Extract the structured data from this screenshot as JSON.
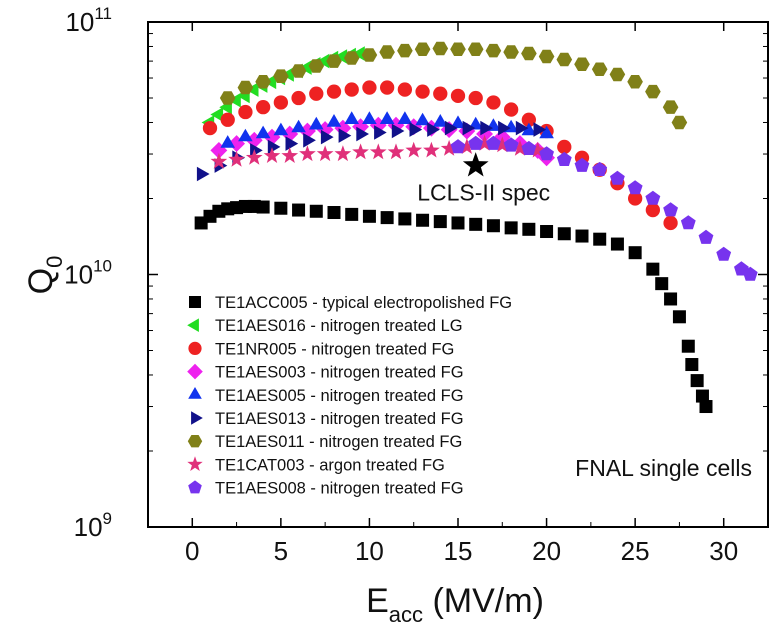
{
  "chart_data": {
    "type": "scatter",
    "xlabel": "E",
    "xlabel_sub": "acc",
    "xlabel_unit": " (MV/m)",
    "ylabel": "Q",
    "ylabel_sub": "0",
    "xlim": [
      -2.5,
      32.5
    ],
    "ylim": [
      1000000000.0,
      100000000000.0
    ],
    "yscale": "log",
    "x_ticks": [
      0,
      5,
      10,
      15,
      20,
      25,
      30
    ],
    "y_ticks": [
      {
        "value": 1000000000.0,
        "base": "10",
        "exp": "9"
      },
      {
        "value": 10000000000.0,
        "base": "10",
        "exp": "10"
      },
      {
        "value": 100000000000.0,
        "base": "10",
        "exp": "11"
      }
    ],
    "legend_position": "bottom-left",
    "annotations": [
      {
        "text": "LCLS-II spec",
        "x": 16,
        "y": 27000000000.0,
        "marker": "star",
        "color": "#000000"
      },
      {
        "text": "FNAL single cells",
        "position": "bottom-right"
      }
    ],
    "series": [
      {
        "name": "TE1ACC005 - typical electropolished FG",
        "marker": "square",
        "color": "#000000",
        "x": [
          0.5,
          1,
          1.5,
          2,
          2.5,
          3,
          3.5,
          4,
          5,
          6,
          7,
          8,
          9,
          10,
          11,
          12,
          13,
          14,
          15,
          16,
          17,
          18,
          19,
          20,
          21,
          22,
          23,
          24,
          25,
          26,
          26.5,
          27,
          27.5,
          28,
          28.2,
          28.5,
          28.8,
          29
        ],
        "y": [
          16000000000.0,
          17000000000.0,
          17800000000.0,
          18200000000.0,
          18400000000.0,
          18600000000.0,
          18600000000.0,
          18500000000.0,
          18300000000.0,
          18000000000.0,
          17800000000.0,
          17600000000.0,
          17300000000.0,
          17000000000.0,
          16800000000.0,
          16600000000.0,
          16400000000.0,
          16200000000.0,
          16000000000.0,
          15800000000.0,
          15600000000.0,
          15300000000.0,
          15100000000.0,
          14800000000.0,
          14500000000.0,
          14200000000.0,
          13800000000.0,
          13200000000.0,
          12200000000.0,
          10500000000.0,
          9200000000.0,
          8000000000.0,
          6800000000.0,
          5200000000.0,
          4400000000.0,
          3800000000.0,
          3300000000.0,
          3000000000.0
        ]
      },
      {
        "name": "TE1AES016 - nitrogen treated LG",
        "marker": "triangle-left",
        "color": "#22dd22",
        "x": [
          1,
          1.5,
          2,
          2.5,
          3,
          3.5,
          4,
          4.5,
          5,
          5.5,
          6,
          6.5,
          7,
          7.5,
          8,
          8.5,
          9,
          9.5
        ],
        "y": [
          40000000000.0,
          43000000000.0,
          46000000000.0,
          49000000000.0,
          51000000000.0,
          54000000000.0,
          56000000000.0,
          58000000000.0,
          60000000000.0,
          62000000000.0,
          64000000000.0,
          66000000000.0,
          68000000000.0,
          70000000000.0,
          72000000000.0,
          73000000000.0,
          74000000000.0,
          75000000000.0
        ]
      },
      {
        "name": "TE1NR005 - nitrogen treated FG",
        "marker": "circle",
        "color": "#ee2222",
        "x": [
          1,
          2,
          3,
          4,
          5,
          6,
          7,
          8,
          9,
          10,
          11,
          12,
          13,
          14,
          15,
          16,
          17,
          18,
          19,
          20,
          21,
          22,
          23,
          24,
          25,
          26,
          27
        ],
        "y": [
          38000000000.0,
          41000000000.0,
          44000000000.0,
          46000000000.0,
          48000000000.0,
          50000000000.0,
          52000000000.0,
          53000000000.0,
          54000000000.0,
          55000000000.0,
          55000000000.0,
          54000000000.0,
          53000000000.0,
          52000000000.0,
          51000000000.0,
          50000000000.0,
          48000000000.0,
          45000000000.0,
          41000000000.0,
          37000000000.0,
          32000000000.0,
          29000000000.0,
          26000000000.0,
          23000000000.0,
          20000000000.0,
          18000000000.0,
          16000000000.0
        ]
      },
      {
        "name": "TE1AES003 - nitrogen treated FG",
        "marker": "diamond",
        "color": "#ee22ee",
        "x": [
          1.5,
          2.5,
          3.5,
          4.5,
          5.5,
          6.5,
          7.5,
          8.5,
          9.5,
          10.5,
          11.5,
          12.5,
          13.5,
          14.5,
          15.5,
          16.5,
          17.5,
          18.5,
          19.5,
          20
        ],
        "y": [
          31000000000.0,
          33000000000.0,
          34000000000.0,
          35000000000.0,
          36000000000.0,
          37000000000.0,
          37500000000.0,
          38000000000.0,
          38500000000.0,
          39000000000.0,
          39000000000.0,
          38500000000.0,
          38000000000.0,
          37500000000.0,
          37000000000.0,
          36000000000.0,
          35000000000.0,
          33000000000.0,
          31000000000.0,
          29000000000.0
        ]
      },
      {
        "name": "TE1AES005 - nitrogen treated FG",
        "marker": "triangle-up",
        "color": "#1133ee",
        "x": [
          2,
          3,
          4,
          5,
          6,
          7,
          8,
          9,
          10,
          11,
          12,
          13,
          14,
          15,
          16,
          17,
          18,
          19,
          20
        ],
        "y": [
          33000000000.0,
          35000000000.0,
          36000000000.0,
          37000000000.0,
          38000000000.0,
          39000000000.0,
          40000000000.0,
          41000000000.0,
          41000000000.0,
          41000000000.0,
          41000000000.0,
          40500000000.0,
          40000000000.0,
          39500000000.0,
          39000000000.0,
          38500000000.0,
          38000000000.0,
          37000000000.0,
          36000000000.0
        ]
      },
      {
        "name": "TE1AES013 - nitrogen treated FG",
        "marker": "triangle-right",
        "color": "#11118a",
        "x": [
          0.5,
          1.5,
          2.5,
          3.5,
          4.5,
          5.5,
          6.5,
          7.5,
          8.5,
          9.5,
          10.5,
          11.5,
          12.5,
          13.5,
          14.5,
          15.5,
          16.5,
          17.5,
          18.5,
          19.5
        ],
        "y": [
          25000000000.0,
          27000000000.0,
          29000000000.0,
          31000000000.0,
          32000000000.0,
          33000000000.0,
          34000000000.0,
          35000000000.0,
          35500000000.0,
          36000000000.0,
          36500000000.0,
          37000000000.0,
          37500000000.0,
          37500000000.0,
          38000000000.0,
          38000000000.0,
          38000000000.0,
          38000000000.0,
          38000000000.0,
          37500000000.0
        ]
      },
      {
        "name": "TE1AES011 - nitrogen treated FG",
        "marker": "hexagon",
        "color": "#808018",
        "x": [
          2,
          3,
          4,
          5,
          6,
          7,
          8,
          9,
          10,
          11,
          12,
          13,
          14,
          15,
          16,
          17,
          18,
          19,
          20,
          21,
          22,
          23,
          24,
          25,
          26,
          27,
          27.5
        ],
        "y": [
          50000000000.0,
          55000000000.0,
          58000000000.0,
          61000000000.0,
          64000000000.0,
          67000000000.0,
          70000000000.0,
          72000000000.0,
          74000000000.0,
          76000000000.0,
          77000000000.0,
          78000000000.0,
          78500000000.0,
          78000000000.0,
          78000000000.0,
          77000000000.0,
          76000000000.0,
          75000000000.0,
          73000000000.0,
          71000000000.0,
          68000000000.0,
          65000000000.0,
          62000000000.0,
          58000000000.0,
          53000000000.0,
          46000000000.0,
          40000000000.0
        ]
      },
      {
        "name": "TE1CAT003 - argon treated FG",
        "marker": "star",
        "color": "#e0307a",
        "x": [
          1.5,
          2.5,
          3.5,
          4.5,
          5.5,
          6.5,
          7.5,
          8.5,
          9.5,
          10.5,
          11.5,
          12.5,
          13.5,
          14.5,
          15.5,
          16.5,
          17.5,
          18.5,
          19.5
        ],
        "y": [
          28000000000.0,
          28500000000.0,
          29000000000.0,
          29500000000.0,
          29500000000.0,
          30000000000.0,
          30000000000.0,
          30000000000.0,
          30500000000.0,
          30500000000.0,
          30500000000.0,
          31000000000.0,
          31000000000.0,
          31500000000.0,
          32000000000.0,
          33000000000.0,
          32500000000.0,
          31500000000.0,
          31000000000.0
        ]
      },
      {
        "name": "TE1AES008 - nitrogen treated FG",
        "marker": "pentagon",
        "color": "#7733ee",
        "x": [
          15,
          16,
          17,
          18,
          19,
          20,
          21,
          22,
          23,
          24,
          25,
          26,
          27,
          28,
          29,
          30,
          31,
          31.5
        ],
        "y": [
          32000000000.0,
          33000000000.0,
          33000000000.0,
          32500000000.0,
          31500000000.0,
          30000000000.0,
          28500000000.0,
          27000000000.0,
          26000000000.0,
          24000000000.0,
          22000000000.0,
          20000000000.0,
          18000000000.0,
          16000000000.0,
          14000000000.0,
          12000000000.0,
          10500000000.0,
          10000000000.0
        ]
      }
    ]
  }
}
